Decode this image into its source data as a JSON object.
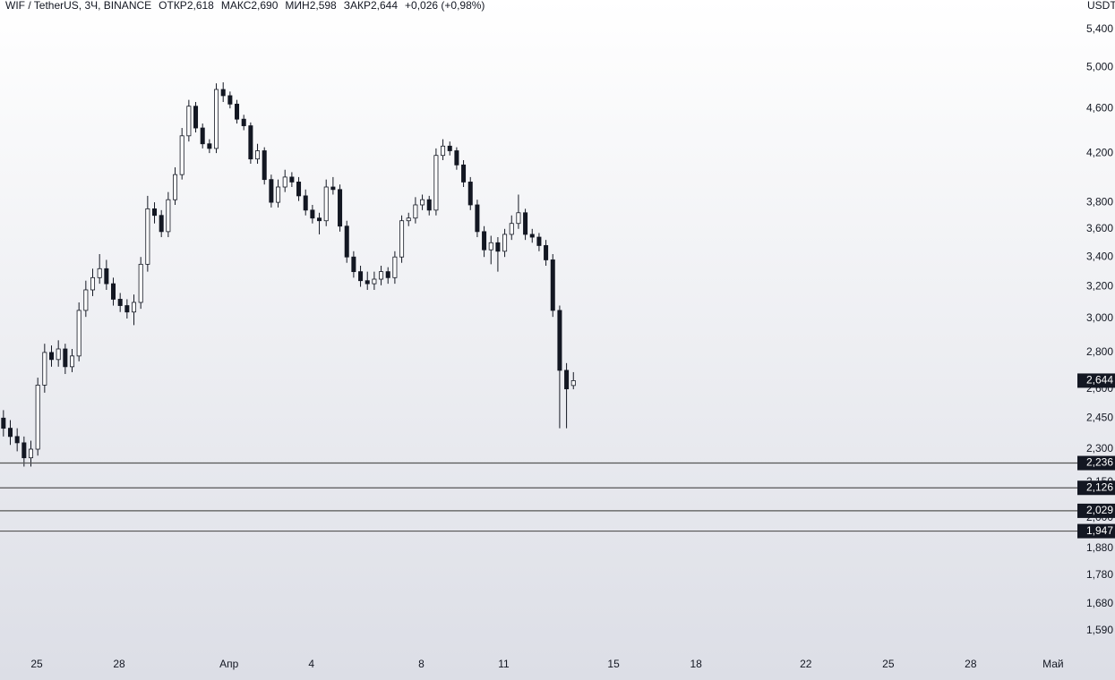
{
  "chart_data": {
    "type": "candlestick",
    "title": "WIF / TetherUS, 3Ч, BINANCE",
    "stats": [
      "ОТКР2,618",
      "МАКС2,690",
      "МИН2,598",
      "ЗАКР2,644",
      "+0,026 (+0,98%)"
    ],
    "currency": "USDT",
    "log_scale": true,
    "grid": false,
    "ylim": [
      1.519,
      5.734
    ],
    "yticks": [
      {
        "value": 5.4,
        "label": "5,400"
      },
      {
        "value": 5.0,
        "label": "5,000"
      },
      {
        "value": 4.6,
        "label": "4,600"
      },
      {
        "value": 4.2,
        "label": "4,200"
      },
      {
        "value": 3.8,
        "label": "3,800"
      },
      {
        "value": 3.6,
        "label": "3,600"
      },
      {
        "value": 3.4,
        "label": "3,400"
      },
      {
        "value": 3.2,
        "label": "3,200"
      },
      {
        "value": 3.0,
        "label": "3,000"
      },
      {
        "value": 2.8,
        "label": "2,800"
      },
      {
        "value": 2.6,
        "label": "2,600"
      },
      {
        "value": 2.45,
        "label": "2,450"
      },
      {
        "value": 2.3,
        "label": "2,300"
      },
      {
        "value": 2.15,
        "label": "2,150"
      },
      {
        "value": 2.0,
        "label": "2,000"
      },
      {
        "value": 1.88,
        "label": "1,880"
      },
      {
        "value": 1.78,
        "label": "1,780"
      },
      {
        "value": 1.68,
        "label": "1,680"
      },
      {
        "value": 1.59,
        "label": "1,590"
      }
    ],
    "xlim": [
      0,
      156.5
    ],
    "xticks": [
      {
        "value": 5.35,
        "label": "25"
      },
      {
        "value": 17.35,
        "label": "28"
      },
      {
        "value": 33.35,
        "label": "Апр"
      },
      {
        "value": 45.35,
        "label": "4"
      },
      {
        "value": 61.35,
        "label": "8"
      },
      {
        "value": 73.35,
        "label": "11"
      },
      {
        "value": 89.35,
        "label": "15"
      },
      {
        "value": 101.35,
        "label": "18"
      },
      {
        "value": 117.35,
        "label": "22"
      },
      {
        "value": 129.35,
        "label": "25"
      },
      {
        "value": 141.35,
        "label": "28"
      },
      {
        "value": 153.35,
        "label": "Май"
      }
    ],
    "series": [
      {
        "up_color": "#ffffff",
        "down_color": "#131722",
        "wick_color": "#131722",
        "open": [
          2.45,
          2.4,
          2.36,
          2.33,
          2.26,
          2.3,
          2.62,
          2.8,
          2.76,
          2.82,
          2.72,
          2.78,
          3.05,
          3.18,
          3.26,
          3.32,
          3.22,
          3.12,
          3.08,
          3.04,
          3.1,
          3.35,
          3.75,
          3.7,
          3.58,
          3.82,
          4.02,
          4.35,
          4.62,
          4.42,
          4.28,
          4.24,
          4.78,
          4.72,
          4.64,
          4.5,
          4.44,
          4.15,
          4.22,
          3.98,
          3.8,
          3.92,
          4.0,
          3.96,
          3.85,
          3.74,
          3.68,
          3.66,
          3.92,
          3.9,
          3.62,
          3.4,
          3.3,
          3.24,
          3.22,
          3.25,
          3.3,
          3.26,
          3.4,
          3.66,
          3.68,
          3.78,
          3.82,
          3.74,
          4.18,
          4.26,
          4.22,
          4.1,
          3.96,
          3.78,
          3.58,
          3.45,
          3.5,
          3.44,
          3.56,
          3.64,
          3.72,
          3.56,
          3.54,
          3.48,
          3.38,
          3.05,
          2.7,
          2.618
        ],
        "high": [
          2.49,
          2.44,
          2.4,
          2.36,
          2.34,
          2.66,
          2.85,
          2.84,
          2.87,
          2.85,
          2.82,
          3.1,
          3.24,
          3.32,
          3.42,
          3.38,
          3.26,
          3.16,
          3.12,
          3.15,
          3.4,
          3.85,
          3.8,
          3.74,
          3.88,
          4.08,
          4.42,
          4.68,
          4.66,
          4.46,
          4.32,
          4.84,
          4.85,
          4.76,
          4.68,
          4.54,
          4.47,
          4.28,
          4.25,
          4.02,
          3.98,
          4.06,
          4.04,
          4.0,
          3.9,
          3.78,
          3.72,
          3.98,
          4.0,
          3.94,
          3.66,
          3.44,
          3.34,
          3.3,
          3.3,
          3.34,
          3.33,
          3.44,
          3.7,
          3.72,
          3.84,
          3.86,
          3.85,
          4.24,
          4.32,
          4.3,
          4.25,
          4.14,
          4.0,
          3.82,
          3.62,
          3.55,
          3.54,
          3.6,
          3.7,
          3.86,
          3.75,
          3.6,
          3.57,
          3.52,
          3.42,
          3.08,
          2.74,
          2.69
        ],
        "low": [
          2.36,
          2.32,
          2.29,
          2.22,
          2.22,
          2.27,
          2.58,
          2.72,
          2.72,
          2.68,
          2.69,
          2.75,
          3.01,
          3.14,
          3.22,
          3.18,
          3.08,
          3.04,
          3.0,
          2.96,
          3.06,
          3.3,
          3.64,
          3.54,
          3.54,
          3.78,
          3.98,
          4.3,
          4.38,
          4.24,
          4.2,
          4.2,
          4.66,
          4.6,
          4.46,
          4.4,
          4.11,
          4.11,
          3.94,
          3.76,
          3.76,
          3.88,
          3.92,
          3.81,
          3.7,
          3.64,
          3.56,
          3.62,
          3.86,
          3.58,
          3.36,
          3.26,
          3.2,
          3.18,
          3.18,
          3.21,
          3.22,
          3.22,
          3.36,
          3.62,
          3.64,
          3.74,
          3.7,
          3.7,
          4.14,
          4.18,
          4.06,
          3.92,
          3.74,
          3.54,
          3.4,
          3.35,
          3.3,
          3.4,
          3.52,
          3.6,
          3.52,
          3.5,
          3.44,
          3.34,
          3.01,
          2.4,
          2.4,
          2.598
        ],
        "close": [
          2.4,
          2.36,
          2.33,
          2.26,
          2.3,
          2.62,
          2.8,
          2.76,
          2.82,
          2.72,
          2.78,
          3.05,
          3.18,
          3.26,
          3.32,
          3.22,
          3.12,
          3.08,
          3.04,
          3.1,
          3.35,
          3.75,
          3.7,
          3.58,
          3.82,
          4.02,
          4.35,
          4.62,
          4.42,
          4.28,
          4.24,
          4.78,
          4.72,
          4.64,
          4.5,
          4.44,
          4.15,
          4.22,
          3.98,
          3.8,
          3.92,
          4.0,
          3.96,
          3.85,
          3.74,
          3.68,
          3.66,
          3.92,
          3.9,
          3.62,
          3.4,
          3.3,
          3.24,
          3.22,
          3.25,
          3.3,
          3.26,
          3.4,
          3.66,
          3.68,
          3.78,
          3.82,
          3.74,
          4.18,
          4.26,
          4.22,
          4.1,
          3.96,
          3.78,
          3.58,
          3.45,
          3.5,
          3.44,
          3.56,
          3.64,
          3.72,
          3.56,
          3.54,
          3.48,
          3.38,
          3.05,
          2.7,
          2.6,
          2.644
        ]
      }
    ],
    "price_lines": [
      {
        "value": 2.236,
        "label": "2,236"
      },
      {
        "value": 2.126,
        "label": "2,126"
      },
      {
        "value": 2.029,
        "label": "2,029"
      },
      {
        "value": 1.947,
        "label": "1,947"
      }
    ],
    "price_line_color": "#555555",
    "last_price": {
      "value": 2.644,
      "label": "2,644"
    }
  }
}
